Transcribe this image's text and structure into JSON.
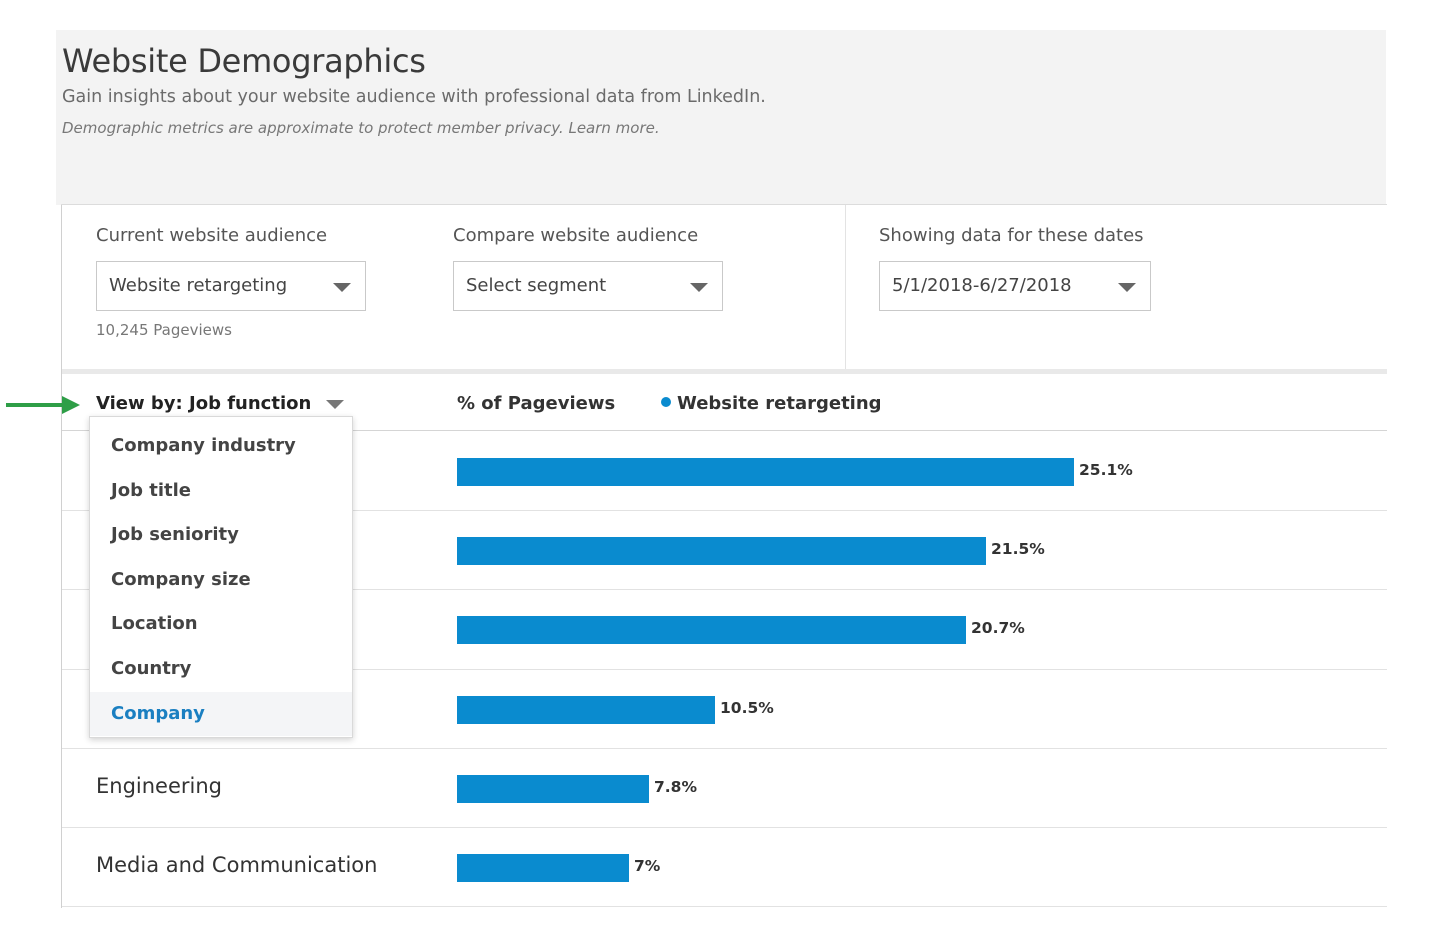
{
  "header": {
    "title": "Website Demographics",
    "subtitle": "Gain insights about your website audience with professional data from LinkedIn.",
    "privacy_note": "Demographic metrics are approximate to protect member privacy. Learn more."
  },
  "controls": {
    "current": {
      "label": "Current website audience",
      "value": "Website retargeting",
      "pageviews": "10,245 Pageviews"
    },
    "compare": {
      "label": "Compare website audience",
      "value": "Select segment"
    },
    "dates": {
      "label": "Showing data for these dates",
      "value": "5/1/2018-6/27/2018"
    }
  },
  "table": {
    "view_by_label": "View by:",
    "view_by_value": "Job function",
    "pct_header": "% of Pageviews",
    "legend": "Website retargeting",
    "rows": [
      {
        "label": "",
        "value": 25.1,
        "value_label": "25.1%"
      },
      {
        "label": "",
        "value": 21.5,
        "value_label": "21.5%"
      },
      {
        "label": "",
        "value": 20.7,
        "value_label": "20.7%"
      },
      {
        "label": "",
        "value": 10.5,
        "value_label": "10.5%"
      },
      {
        "label": "Engineering",
        "value": 7.8,
        "value_label": "7.8%"
      },
      {
        "label": "Media and Communication",
        "value": 7,
        "value_label": "7%"
      }
    ]
  },
  "menu": {
    "items": [
      {
        "label": "Company industry"
      },
      {
        "label": "Job title"
      },
      {
        "label": "Job seniority"
      },
      {
        "label": "Company size"
      },
      {
        "label": "Location"
      },
      {
        "label": "Country"
      },
      {
        "label": "Company",
        "selected": true
      }
    ]
  },
  "colors": {
    "bar": "#0a8bcf",
    "arrow": "#2e9e47",
    "link": "#1a7fc1"
  },
  "icons": {
    "annotation": "green-arrow-icon",
    "dropdown": "caret-down-icon",
    "legend": "legend-dot-icon"
  }
}
